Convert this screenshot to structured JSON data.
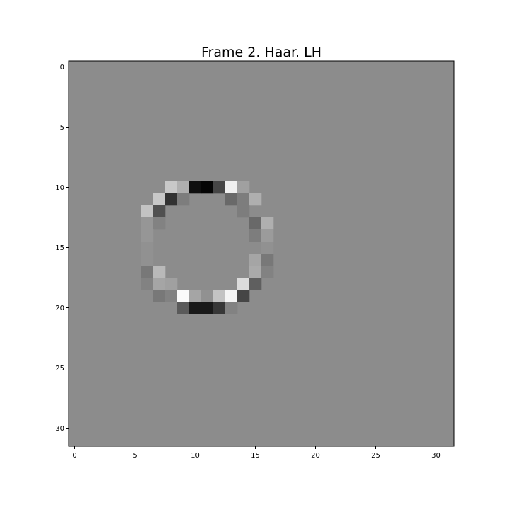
{
  "chart_data": {
    "type": "heatmap",
    "title": "Frame 2. Haar. LH",
    "xlabel": "",
    "ylabel": "",
    "colormap": "gray",
    "grid": false,
    "xlim": [
      -0.5,
      31.5
    ],
    "ylim": [
      31.5,
      -0.5
    ],
    "x_ticks": [
      0,
      5,
      10,
      15,
      20,
      25,
      30
    ],
    "y_ticks": [
      0,
      5,
      10,
      15,
      20,
      25,
      30
    ],
    "x_tick_labels": [
      "0",
      "5",
      "10",
      "15",
      "20",
      "25",
      "30"
    ],
    "y_tick_labels": [
      "0",
      "5",
      "10",
      "15",
      "20",
      "25",
      "30"
    ],
    "rows": 32,
    "cols": 32,
    "value_range": [
      0,
      255
    ],
    "background_value": 140,
    "cells": [
      [
        10,
        8,
        200
      ],
      [
        10,
        9,
        175
      ],
      [
        10,
        10,
        15
      ],
      [
        10,
        11,
        5
      ],
      [
        10,
        12,
        70
      ],
      [
        10,
        13,
        240
      ],
      [
        10,
        14,
        160
      ],
      [
        11,
        7,
        200
      ],
      [
        11,
        8,
        50
      ],
      [
        11,
        9,
        125
      ],
      [
        11,
        13,
        105
      ],
      [
        11,
        14,
        125
      ],
      [
        11,
        15,
        175
      ],
      [
        12,
        6,
        195
      ],
      [
        12,
        7,
        80
      ],
      [
        12,
        14,
        125
      ],
      [
        13,
        6,
        150
      ],
      [
        13,
        7,
        130
      ],
      [
        13,
        15,
        105
      ],
      [
        13,
        16,
        175
      ],
      [
        14,
        6,
        150
      ],
      [
        14,
        15,
        125
      ],
      [
        14,
        16,
        155
      ],
      [
        15,
        6,
        145
      ],
      [
        15,
        16,
        145
      ],
      [
        16,
        6,
        145
      ],
      [
        16,
        15,
        165
      ],
      [
        16,
        16,
        120
      ],
      [
        17,
        6,
        120
      ],
      [
        17,
        7,
        185
      ],
      [
        17,
        15,
        170
      ],
      [
        17,
        16,
        130
      ],
      [
        18,
        6,
        130
      ],
      [
        18,
        7,
        165
      ],
      [
        18,
        8,
        160
      ],
      [
        18,
        14,
        220
      ],
      [
        18,
        15,
        95
      ],
      [
        19,
        7,
        120
      ],
      [
        19,
        8,
        130
      ],
      [
        19,
        9,
        250
      ],
      [
        19,
        10,
        165
      ],
      [
        19,
        11,
        145
      ],
      [
        19,
        12,
        195
      ],
      [
        19,
        13,
        245
      ],
      [
        19,
        14,
        70
      ],
      [
        20,
        9,
        90
      ],
      [
        20,
        10,
        25
      ],
      [
        20,
        11,
        25
      ],
      [
        20,
        12,
        55
      ],
      [
        20,
        13,
        130
      ]
    ]
  }
}
